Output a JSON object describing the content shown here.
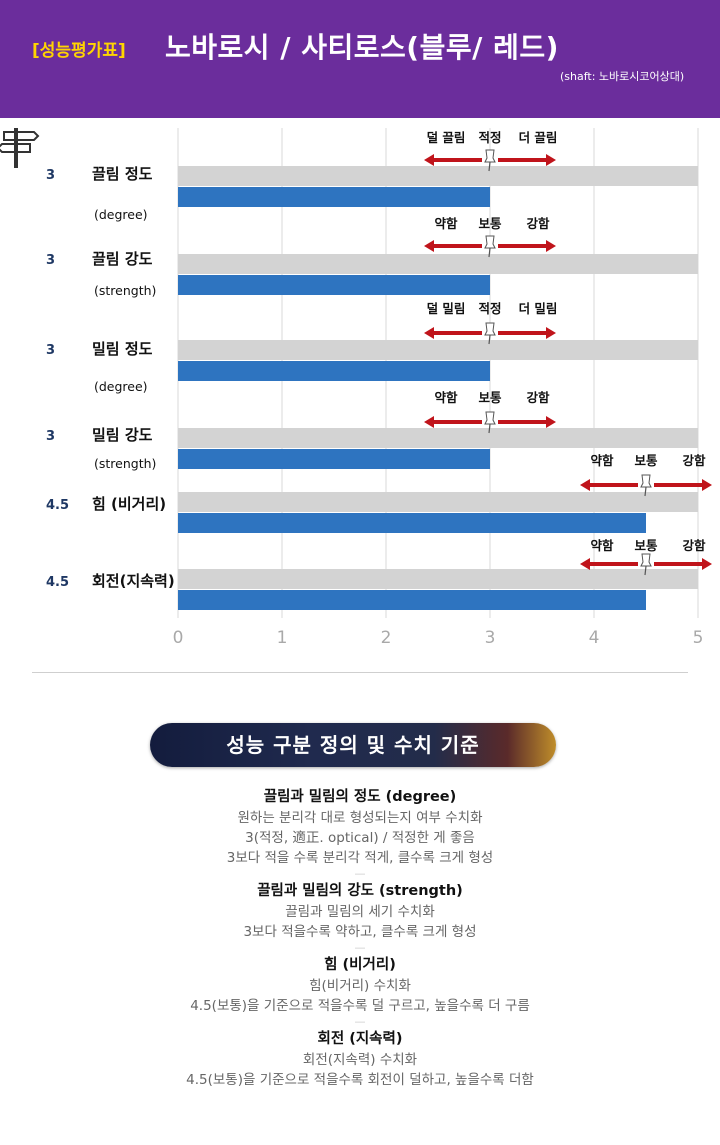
{
  "header": {
    "badge": "[성능평가표]",
    "title": "노바로시 / 사티로스(블루/ 레드)",
    "shaft_note": "(shaft: 노바로시코어상대)"
  },
  "chart_data": {
    "type": "bar",
    "orientation": "horizontal",
    "xlim": [
      0,
      5
    ],
    "x_ticks": [
      "0",
      "1",
      "2",
      "3",
      "4",
      "5"
    ],
    "grid": "vertical",
    "categories": [
      {
        "value_label": "3",
        "name": "끌림 정도",
        "sub": "(degree)",
        "value": 3,
        "scale": {
          "left": "덜 끌림",
          "mid": "적정",
          "right": "더 끌림",
          "center": 3
        }
      },
      {
        "value_label": "3",
        "name": "끌림 강도",
        "sub": "(strength)",
        "value": 3,
        "scale": {
          "left": "약함",
          "mid": "보통",
          "right": "강함",
          "center": 3
        }
      },
      {
        "value_label": "3",
        "name": "밀림 정도",
        "sub": "(degree)",
        "value": 3,
        "scale": {
          "left": "덜 밀림",
          "mid": "적정",
          "right": "더 밀림",
          "center": 3
        }
      },
      {
        "value_label": "3",
        "name": "밀림 강도",
        "sub": "(strength)",
        "value": 3,
        "scale": {
          "left": "약함",
          "mid": "보통",
          "right": "강함",
          "center": 3
        }
      },
      {
        "value_label": "4.5",
        "name": "힘 (비거리)",
        "sub": "",
        "value": 4.5,
        "scale": {
          "left": "약함",
          "mid": "보통",
          "right": "강함",
          "center": 4.5
        }
      },
      {
        "value_label": "4.5",
        "name": "회전(지속력)",
        "sub": "",
        "value": 4.5,
        "scale": {
          "left": "약함",
          "mid": "보통",
          "right": "강함",
          "center": 4.5
        }
      }
    ],
    "series": [
      {
        "values": [
          5,
          5,
          5,
          5,
          5,
          5
        ],
        "color": "#d3d3d3"
      },
      {
        "values": [
          3,
          3,
          3,
          3,
          4.5,
          4.5
        ],
        "color": "#2e74c0"
      }
    ],
    "arrow_color": "#c0141b"
  },
  "definitions": {
    "heading": "성능 구분 정의 및 수치 기준",
    "sections": [
      {
        "title": "끌림과 밀림의 정도 (degree)",
        "lines": [
          "원하는 분리각 대로 형성되는지 여부 수치화",
          "3(적정, 適正. optical) / 적정한 게 좋음",
          "3보다 적을 수록 분리각 적게, 클수록 크게 형성"
        ]
      },
      {
        "title": "끌림과 밀림의 강도 (strength)",
        "lines": [
          "끌림과 밀림의 세기 수치화",
          "3보다 적을수록 약하고, 클수록 크게 형성"
        ]
      },
      {
        "title": "힘 (비거리)",
        "lines": [
          "힘(비거리) 수치화",
          "4.5(보통)을 기준으로 적을수록 덜 구르고, 높을수록 더 구름"
        ]
      },
      {
        "title": "회전 (지속력)",
        "lines": [
          "회전(지속력) 수치화",
          "4.5(보통)을 기준으로 적을수록 회전이 덜하고, 높을수록 더함"
        ]
      }
    ]
  }
}
